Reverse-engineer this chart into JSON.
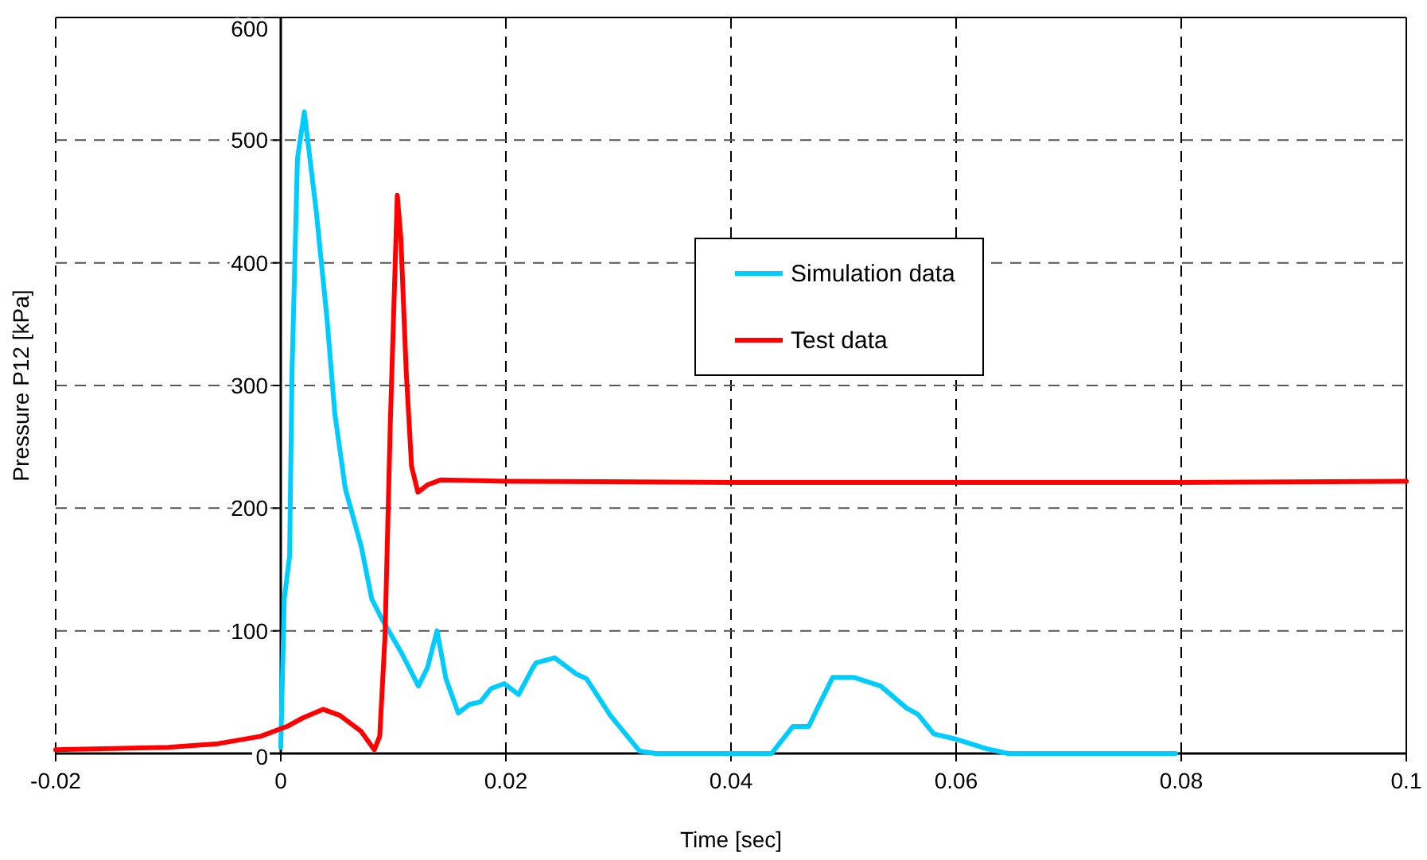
{
  "chart_data": {
    "type": "line",
    "xlabel": "Time [sec]",
    "ylabel": "Pressure P12 [kPa]",
    "xlim": [
      -0.02,
      0.1
    ],
    "xticks": [
      -0.02,
      0,
      0.02,
      0.04,
      0.06,
      0.08,
      0.1
    ],
    "ylim": [
      0,
      600
    ],
    "yticks": [
      0,
      100,
      200,
      300,
      400,
      500,
      600
    ],
    "grid": true,
    "legend": "top right",
    "line_style": "solid",
    "marker": "none",
    "series": [
      {
        "name": "Simulation data",
        "color": "#00ccff",
        "x": [
          0,
          0.00031,
          0.00078,
          0.001,
          0.00148,
          0.00209,
          0.00315,
          0.0041,
          0.0048,
          0.00573,
          0.00714,
          0.00808,
          0.00902,
          0.01067,
          0.01223,
          0.01303,
          0.01388,
          0.01467,
          0.01576,
          0.01675,
          0.01774,
          0.01869,
          0.01986,
          0.02113,
          0.0224,
          0.02268,
          0.02434,
          0.02622,
          0.02716,
          0.02928,
          0.03187,
          0.0333,
          0.0436,
          0.04549,
          0.0469,
          0.04784,
          0.04903,
          0.05095,
          0.0533,
          0.0556,
          0.0566,
          0.05802,
          0.05986,
          0.06268,
          0.0646,
          0.0795
        ],
        "values": [
          5,
          126,
          161,
          312,
          485,
          523,
          442,
          355,
          277,
          216,
          169,
          126,
          109,
          83,
          55,
          70,
          100,
          61,
          33,
          40,
          42,
          53,
          57,
          48,
          70,
          74,
          78,
          65,
          61,
          31,
          2,
          0,
          0,
          22,
          22,
          40,
          62,
          62,
          55,
          37,
          32,
          16,
          12,
          4,
          0,
          0
        ]
      },
      {
        "name": "Test data",
        "color": "#ff0000",
        "x": [
          -0.02,
          -0.01,
          -0.00558,
          -0.0018,
          0.00054,
          0.00195,
          0.00375,
          0.00526,
          0.00714,
          0.00831,
          0.00879,
          0.00926,
          0.00973,
          0.01035,
          0.01067,
          0.01114,
          0.01162,
          0.01218,
          0.01303,
          0.0142,
          0.02,
          0.04,
          0.06,
          0.08,
          0.1
        ],
        "values": [
          3,
          5,
          8,
          14,
          22,
          29,
          36,
          31,
          18,
          3,
          14,
          96,
          269,
          455,
          420,
          312,
          234,
          213,
          219,
          223,
          222,
          221,
          221,
          221,
          222
        ]
      }
    ]
  }
}
